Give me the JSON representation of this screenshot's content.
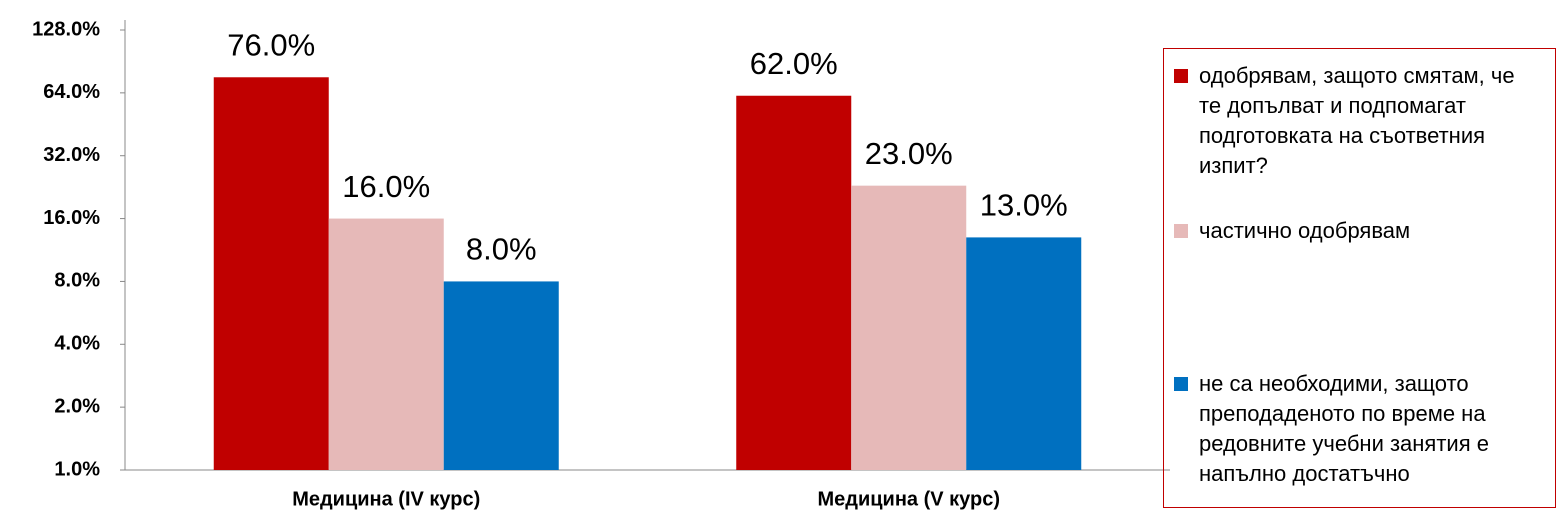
{
  "chart_data": {
    "type": "bar",
    "categories": [
      "Медицина (IV курс)",
      "Медицина (V курс)"
    ],
    "series": [
      {
        "name": "одобрявам, защото смятам, че те допълват и подпомагат подготовката на съответния изпит?",
        "color": "#c00000",
        "values": [
          76,
          62
        ],
        "value_labels": [
          "76.0%",
          "62.0%"
        ]
      },
      {
        "name": "частично одобрявам",
        "color": "#e6b9b8",
        "values": [
          16,
          23
        ],
        "value_labels": [
          "16.0%",
          "23.0%"
        ]
      },
      {
        "name": "не са необходими, защото преподаденото по време на редовните учебни занятия е напълно достатъчно",
        "color": "#0070c0",
        "values": [
          8,
          13
        ],
        "value_labels": [
          "8.0%",
          "13.0%"
        ]
      }
    ],
    "ylim": [
      1,
      128
    ],
    "yticks": [
      {
        "value": 1,
        "label": "1.0%"
      },
      {
        "value": 2,
        "label": "2.0%"
      },
      {
        "value": 4,
        "label": "4.0%"
      },
      {
        "value": 8,
        "label": "8.0%"
      },
      {
        "value": 16,
        "label": "16.0%"
      },
      {
        "value": 32,
        "label": "32.0%"
      },
      {
        "value": 64,
        "label": "64.0%"
      },
      {
        "value": 128,
        "label": "128.0%"
      }
    ],
    "log_scale": true,
    "log_base": 2,
    "grid": false,
    "legend": "right"
  }
}
